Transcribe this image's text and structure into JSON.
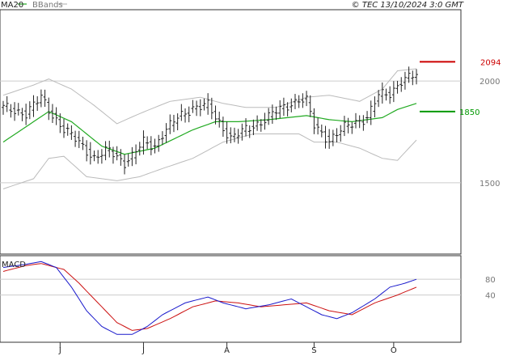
{
  "header": {
    "ma_label": "MA20",
    "bbands_label": "BBands",
    "copyright": "© TEC 13/10/2024 3:0 GMT"
  },
  "colors": {
    "price": "#222222",
    "ma20": "#22aa22",
    "bbands": "#bbbbbb",
    "resistance": "#cc0000",
    "support": "#009900",
    "macd": "#1a1acc",
    "signal": "#cc1111",
    "grid": "#cccccc",
    "border": "#333333"
  },
  "chart_data": {
    "type": "line",
    "price_panel": {
      "y_ticks": [
        {
          "label": "2000",
          "value": 2000
        },
        {
          "label": "1500",
          "value": 1500
        }
      ],
      "ylim": [
        1150,
        2350
      ],
      "levels": [
        {
          "label": "2094",
          "value": 2094,
          "role": "resistance"
        },
        {
          "label": "1850",
          "value": 1850,
          "role": "support"
        }
      ],
      "x_month_labels": [
        {
          "label": "J",
          "index": 15
        },
        {
          "label": "J",
          "index": 37
        },
        {
          "label": "A",
          "index": 59
        },
        {
          "label": "S",
          "index": 82
        },
        {
          "label": "O",
          "index": 103
        }
      ],
      "bars_count": 110,
      "close_anchors": [
        [
          0,
          1870
        ],
        [
          6,
          1840
        ],
        [
          10,
          1920
        ],
        [
          12,
          1860
        ],
        [
          16,
          1760
        ],
        [
          20,
          1700
        ],
        [
          24,
          1620
        ],
        [
          28,
          1660
        ],
        [
          32,
          1600
        ],
        [
          34,
          1630
        ],
        [
          37,
          1700
        ],
        [
          40,
          1680
        ],
        [
          42,
          1740
        ],
        [
          46,
          1820
        ],
        [
          50,
          1870
        ],
        [
          54,
          1880
        ],
        [
          56,
          1820
        ],
        [
          60,
          1720
        ],
        [
          64,
          1760
        ],
        [
          68,
          1800
        ],
        [
          72,
          1850
        ],
        [
          78,
          1910
        ],
        [
          80,
          1900
        ],
        [
          82,
          1780
        ],
        [
          86,
          1710
        ],
        [
          90,
          1770
        ],
        [
          93,
          1800
        ],
        [
          96,
          1820
        ],
        [
          99,
          1930
        ],
        [
          102,
          1940
        ],
        [
          105,
          2000
        ],
        [
          109,
          2030
        ]
      ],
      "ma20_anchors": [
        [
          0,
          1700
        ],
        [
          8,
          1800
        ],
        [
          12,
          1850
        ],
        [
          18,
          1800
        ],
        [
          26,
          1680
        ],
        [
          32,
          1640
        ],
        [
          40,
          1670
        ],
        [
          50,
          1760
        ],
        [
          56,
          1800
        ],
        [
          62,
          1800
        ],
        [
          70,
          1810
        ],
        [
          80,
          1830
        ],
        [
          86,
          1810
        ],
        [
          92,
          1800
        ],
        [
          100,
          1820
        ],
        [
          104,
          1860
        ],
        [
          109,
          1890
        ]
      ],
      "bb_upper_anchors": [
        [
          0,
          1930
        ],
        [
          8,
          1980
        ],
        [
          12,
          2010
        ],
        [
          18,
          1960
        ],
        [
          24,
          1880
        ],
        [
          30,
          1790
        ],
        [
          36,
          1840
        ],
        [
          44,
          1900
        ],
        [
          52,
          1920
        ],
        [
          58,
          1890
        ],
        [
          64,
          1870
        ],
        [
          72,
          1870
        ],
        [
          80,
          1920
        ],
        [
          86,
          1930
        ],
        [
          94,
          1900
        ],
        [
          100,
          1960
        ],
        [
          104,
          2050
        ],
        [
          109,
          2060
        ]
      ],
      "bb_lower_anchors": [
        [
          0,
          1470
        ],
        [
          8,
          1520
        ],
        [
          12,
          1620
        ],
        [
          16,
          1630
        ],
        [
          22,
          1530
        ],
        [
          30,
          1510
        ],
        [
          36,
          1530
        ],
        [
          42,
          1570
        ],
        [
          50,
          1620
        ],
        [
          58,
          1700
        ],
        [
          66,
          1740
        ],
        [
          72,
          1740
        ],
        [
          78,
          1740
        ],
        [
          82,
          1700
        ],
        [
          88,
          1700
        ],
        [
          94,
          1670
        ],
        [
          100,
          1620
        ],
        [
          104,
          1610
        ],
        [
          109,
          1710
        ]
      ]
    },
    "macd_panel": {
      "title": "MACD",
      "y_ticks": [
        {
          "label": "80",
          "value": 80
        },
        {
          "label": "40",
          "value": 40
        }
      ],
      "ylim": [
        -80,
        140
      ],
      "macd_anchors": [
        [
          0,
          110
        ],
        [
          6,
          118
        ],
        [
          10,
          125
        ],
        [
          14,
          110
        ],
        [
          18,
          60
        ],
        [
          22,
          0
        ],
        [
          26,
          -40
        ],
        [
          30,
          -60
        ],
        [
          34,
          -60
        ],
        [
          38,
          -40
        ],
        [
          42,
          -10
        ],
        [
          48,
          20
        ],
        [
          54,
          35
        ],
        [
          58,
          20
        ],
        [
          64,
          5
        ],
        [
          70,
          15
        ],
        [
          76,
          30
        ],
        [
          80,
          10
        ],
        [
          84,
          -10
        ],
        [
          88,
          -20
        ],
        [
          92,
          -5
        ],
        [
          98,
          30
        ],
        [
          102,
          60
        ],
        [
          106,
          70
        ],
        [
          109,
          80
        ]
      ],
      "signal_anchors": [
        [
          0,
          100
        ],
        [
          6,
          115
        ],
        [
          10,
          120
        ],
        [
          16,
          105
        ],
        [
          20,
          70
        ],
        [
          26,
          10
        ],
        [
          30,
          -30
        ],
        [
          34,
          -50
        ],
        [
          38,
          -45
        ],
        [
          44,
          -20
        ],
        [
          50,
          10
        ],
        [
          56,
          25
        ],
        [
          62,
          20
        ],
        [
          68,
          10
        ],
        [
          74,
          15
        ],
        [
          80,
          20
        ],
        [
          86,
          0
        ],
        [
          92,
          -10
        ],
        [
          98,
          20
        ],
        [
          104,
          40
        ],
        [
          109,
          60
        ]
      ]
    }
  }
}
